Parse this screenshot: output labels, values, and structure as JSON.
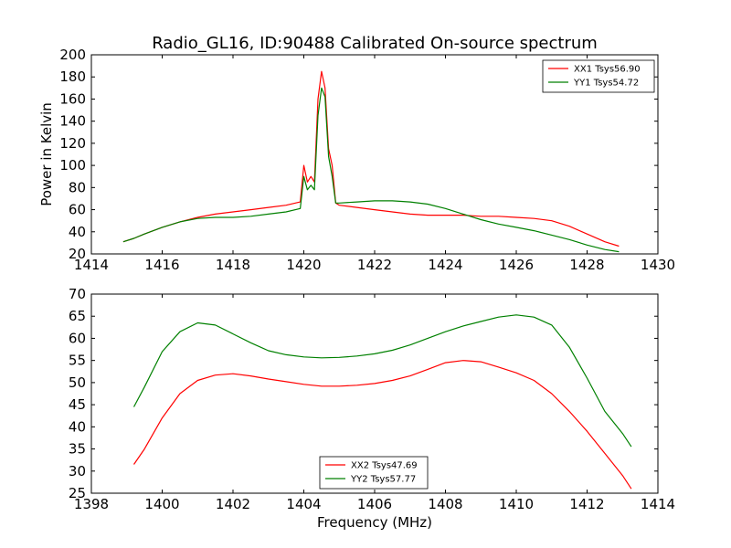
{
  "chart_data": [
    {
      "type": "line",
      "title": "Radio_GL16, ID:90488 Calibrated On-source spectrum",
      "xlabel": "",
      "ylabel": "Power in Kelvin",
      "xlim": [
        1414,
        1430
      ],
      "ylim": [
        20,
        200
      ],
      "xticks": [
        1414,
        1416,
        1418,
        1420,
        1422,
        1424,
        1426,
        1428,
        1430
      ],
      "yticks": [
        20,
        40,
        60,
        80,
        100,
        120,
        140,
        160,
        180,
        200
      ],
      "grid": false,
      "legend_position": "top-right",
      "series": [
        {
          "name": "XX1 Tsys56.90",
          "color": "#ff0000",
          "x": [
            1414.9,
            1415.2,
            1415.5,
            1416.0,
            1416.5,
            1417.0,
            1417.5,
            1418.0,
            1418.5,
            1419.0,
            1419.5,
            1419.9,
            1420.0,
            1420.1,
            1420.2,
            1420.3,
            1420.4,
            1420.5,
            1420.6,
            1420.7,
            1420.8,
            1420.9,
            1421.0,
            1421.5,
            1422.0,
            1422.5,
            1423.0,
            1423.5,
            1424.0,
            1424.5,
            1425.0,
            1425.5,
            1426.0,
            1426.5,
            1427.0,
            1427.5,
            1428.0,
            1428.5,
            1428.9
          ],
          "y": [
            31,
            34,
            38,
            44,
            49,
            53,
            56,
            58,
            60,
            62,
            64,
            67,
            100,
            85,
            90,
            85,
            160,
            185,
            170,
            115,
            100,
            66,
            64,
            62,
            60,
            58,
            56,
            55,
            55,
            55,
            54,
            54,
            53,
            52,
            50,
            45,
            38,
            31,
            27
          ]
        },
        {
          "name": "YY1 Tsys54.72",
          "color": "#008000",
          "x": [
            1414.9,
            1415.2,
            1415.5,
            1416.0,
            1416.5,
            1417.0,
            1417.5,
            1418.0,
            1418.5,
            1419.0,
            1419.5,
            1419.9,
            1420.0,
            1420.1,
            1420.2,
            1420.3,
            1420.4,
            1420.5,
            1420.6,
            1420.7,
            1420.8,
            1420.9,
            1421.0,
            1421.5,
            1422.0,
            1422.5,
            1423.0,
            1423.5,
            1424.0,
            1424.5,
            1425.0,
            1425.5,
            1426.0,
            1426.5,
            1427.0,
            1427.5,
            1428.0,
            1428.5,
            1428.9
          ],
          "y": [
            31,
            34,
            38,
            44,
            49,
            52,
            53,
            53,
            54,
            56,
            58,
            61,
            90,
            78,
            82,
            78,
            145,
            170,
            162,
            108,
            90,
            66,
            66,
            67,
            68,
            68,
            67,
            65,
            61,
            56,
            51,
            47,
            44,
            41,
            37,
            33,
            28,
            24,
            22
          ]
        }
      ]
    },
    {
      "type": "line",
      "title": "",
      "xlabel": "Frequency (MHz)",
      "ylabel": "",
      "xlim": [
        1398,
        1414
      ],
      "ylim": [
        25,
        70
      ],
      "xticks": [
        1398,
        1400,
        1402,
        1404,
        1406,
        1408,
        1410,
        1412,
        1414
      ],
      "yticks": [
        25,
        30,
        35,
        40,
        45,
        50,
        55,
        60,
        65,
        70
      ],
      "grid": false,
      "legend_position": "bottom-center",
      "series": [
        {
          "name": "XX2 Tsys47.69",
          "color": "#ff0000",
          "x": [
            1399.2,
            1399.5,
            1400.0,
            1400.5,
            1401.0,
            1401.5,
            1402.0,
            1402.5,
            1403.0,
            1403.5,
            1404.0,
            1404.5,
            1405.0,
            1405.5,
            1406.0,
            1406.5,
            1407.0,
            1407.5,
            1408.0,
            1408.5,
            1409.0,
            1409.5,
            1410.0,
            1410.5,
            1411.0,
            1411.5,
            1412.0,
            1412.5,
            1413.0,
            1413.25
          ],
          "y": [
            31.5,
            35,
            42,
            47.5,
            50.5,
            51.7,
            52,
            51.5,
            50.8,
            50.2,
            49.6,
            49.2,
            49.2,
            49.4,
            49.8,
            50.5,
            51.5,
            53,
            54.5,
            55,
            54.7,
            53.5,
            52.2,
            50.5,
            47.5,
            43.5,
            39,
            34,
            29,
            26
          ]
        },
        {
          "name": "YY2 Tsys57.77",
          "color": "#008000",
          "x": [
            1399.2,
            1399.5,
            1400.0,
            1400.5,
            1401.0,
            1401.5,
            1402.0,
            1402.5,
            1403.0,
            1403.5,
            1404.0,
            1404.5,
            1405.0,
            1405.5,
            1406.0,
            1406.5,
            1407.0,
            1407.5,
            1408.0,
            1408.5,
            1409.0,
            1409.5,
            1410.0,
            1410.5,
            1411.0,
            1411.5,
            1412.0,
            1412.5,
            1413.0,
            1413.25
          ],
          "y": [
            44.5,
            49,
            57,
            61.5,
            63.5,
            63,
            61,
            59,
            57.2,
            56.3,
            55.8,
            55.6,
            55.7,
            56,
            56.5,
            57.3,
            58.5,
            60,
            61.5,
            62.8,
            63.8,
            64.8,
            65.3,
            64.8,
            63,
            58,
            51,
            43.5,
            38.5,
            35.5
          ]
        }
      ]
    }
  ]
}
